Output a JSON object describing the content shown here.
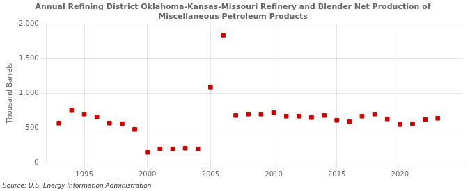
{
  "chart_data": {
    "type": "scatter",
    "title": "Annual Refining District Oklahoma-Kansas-Missouri Refinery and Blender Net Production of\nMiscellaneous Petroleum Products",
    "ylabel": "Thousand Barrels",
    "annotations": [
      "Source: U.S. Energy Information Administration"
    ],
    "x": [
      1993,
      1994,
      1995,
      1996,
      1997,
      1998,
      1999,
      2000,
      2001,
      2002,
      2003,
      2004,
      2005,
      2006,
      2007,
      2008,
      2009,
      2010,
      2011,
      2012,
      2013,
      2014,
      2015,
      2016,
      2017,
      2018,
      2019,
      2020,
      2021,
      2022,
      2023
    ],
    "values": [
      570,
      760,
      700,
      660,
      570,
      560,
      480,
      150,
      200,
      200,
      210,
      200,
      1090,
      1840,
      680,
      700,
      700,
      720,
      670,
      670,
      650,
      680,
      610,
      590,
      670,
      700,
      630,
      550,
      560,
      620,
      640
    ],
    "color": "#cc0000",
    "marker": "square",
    "xlim": [
      1992,
      2025
    ],
    "xticks": [
      1995,
      2000,
      2005,
      2010,
      2015,
      2020
    ],
    "ylim": [
      0,
      2000
    ],
    "yticks": [
      0,
      500,
      {
        "value": 1000,
        "label": "1,000"
      },
      {
        "value": 1500,
        "label": "1,500"
      },
      {
        "value": 2000,
        "label": "2,000"
      }
    ],
    "grid": true
  }
}
